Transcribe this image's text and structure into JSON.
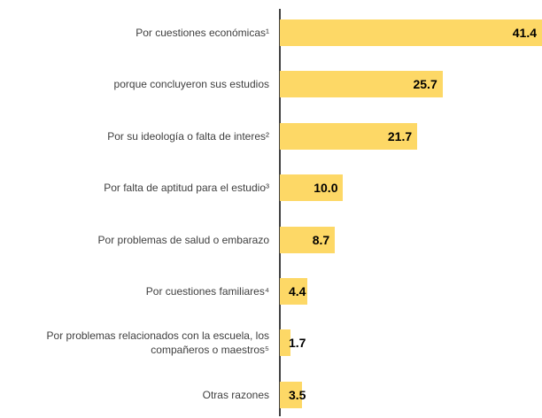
{
  "chart_data": {
    "type": "bar",
    "orientation": "horizontal",
    "categories": [
      "Por cuestiones económicas¹",
      "porque concluyeron sus estudios",
      "Por su ideología o falta de interes²",
      "Por falta de aptitud para el estudio³",
      "Por problemas de salud o embarazo",
      "Por cuestiones familiares⁴",
      "Por problemas relacionados con la escuela, los compañeros o maestros⁵",
      "Otras razones"
    ],
    "values": [
      41.4,
      25.7,
      21.7,
      10.0,
      8.7,
      4.4,
      1.7,
      3.5
    ],
    "value_labels": [
      "41.4",
      "25.7",
      "21.7",
      "10.0",
      "8.7",
      "4.4",
      "1.7",
      "3.5"
    ],
    "color": "#fdd866"
  }
}
